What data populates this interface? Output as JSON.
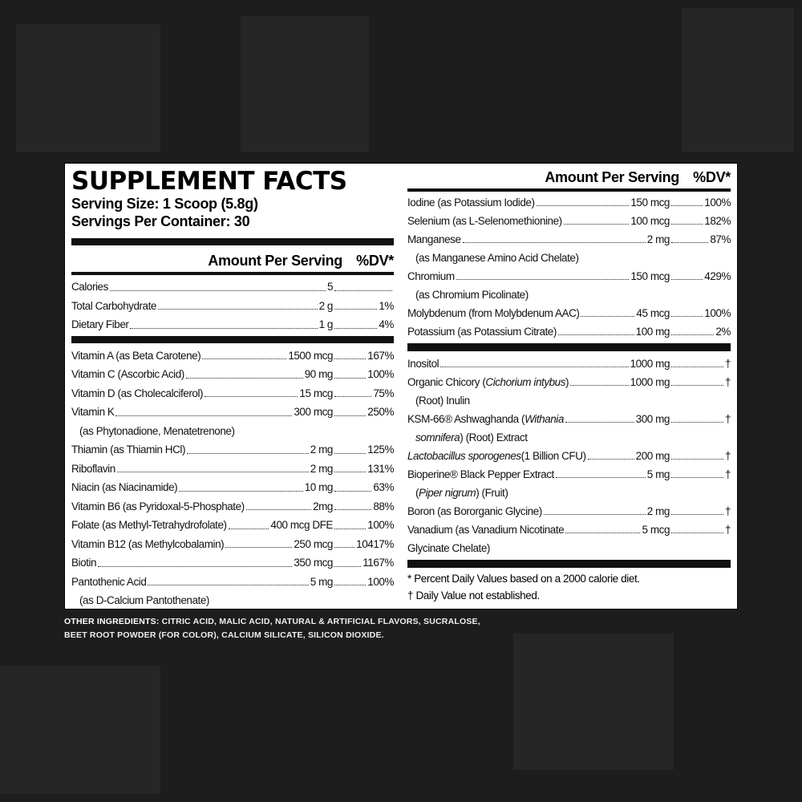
{
  "background": {
    "color": "#1d1d1d"
  },
  "label": {
    "title": "SUPPLEMENT FACTS",
    "serving_size": "Serving Size: 1 Scoop (5.8g)",
    "servings_per_container": "Servings Per Container: 30",
    "header_amount": "Amount Per Serving",
    "header_dv": "%DV*",
    "left_group1": [
      {
        "name": [
          {
            "t": "Calories"
          }
        ],
        "amount": "5",
        "dv": ""
      },
      {
        "name": [
          {
            "t": "Total Carbohydrate"
          }
        ],
        "amount": "2 g",
        "dv": "1%"
      },
      {
        "name": [
          {
            "t": "Dietary Fiber"
          }
        ],
        "amount": "1 g",
        "dv": "4%"
      }
    ],
    "left_group2": [
      {
        "name": [
          {
            "t": "Vitamin A (as Beta Carotene)"
          }
        ],
        "amount": "1500 mcg",
        "dv": "167%"
      },
      {
        "name": [
          {
            "t": "Vitamin C (Ascorbic Acid)"
          }
        ],
        "amount": "90 mg",
        "dv": "100%"
      },
      {
        "name": [
          {
            "t": "Vitamin D (as Cholecalciferol)"
          }
        ],
        "amount": "15 mcg",
        "dv": "75%"
      },
      {
        "name": [
          {
            "t": "Vitamin K"
          }
        ],
        "amount": "300 mcg",
        "dv": "250%"
      },
      {
        "cont": [
          {
            "t": "(as Phytonadione, Menatetrenone)"
          }
        ]
      },
      {
        "name": [
          {
            "t": "Thiamin (as Thiamin HCl)"
          }
        ],
        "amount": "2 mg",
        "dv": "125%"
      },
      {
        "name": [
          {
            "t": "Riboflavin"
          }
        ],
        "amount": "2 mg",
        "dv": "131%"
      },
      {
        "name": [
          {
            "t": "Niacin (as Niacinamide)"
          }
        ],
        "amount": "10 mg",
        "dv": "63%"
      },
      {
        "name": [
          {
            "t": "Vitamin B6 (as Pyridoxal-5-Phosphate)"
          }
        ],
        "amount": "2mg",
        "dv": "88%"
      },
      {
        "name": [
          {
            "t": "Folate (as Methyl-Tetrahydrofolate)"
          }
        ],
        "amount": "400 mcg DFE",
        "dv": "100%"
      },
      {
        "name": [
          {
            "t": "Vitamin B12 (as Methylcobalamin)"
          }
        ],
        "amount": "250 mcg",
        "dv": "10417%"
      },
      {
        "name": [
          {
            "t": "Biotin"
          }
        ],
        "amount": "350 mcg",
        "dv": "1167%"
      },
      {
        "name": [
          {
            "t": "Pantothenic Acid"
          }
        ],
        "amount": "5 mg",
        "dv": "100%"
      },
      {
        "cont": [
          {
            "t": "(as D-Calcium Pantothenate)"
          }
        ]
      }
    ],
    "right_group1": [
      {
        "name": [
          {
            "t": "Iodine (as Potassium Iodide)"
          }
        ],
        "amount": "150 mcg",
        "dv": "100%"
      },
      {
        "name": [
          {
            "t": "Selenium (as L-Selenomethionine)"
          }
        ],
        "amount": "100 mcg",
        "dv": "182%"
      },
      {
        "name": [
          {
            "t": "Manganese"
          }
        ],
        "amount": "2 mg",
        "dv": "87%"
      },
      {
        "cont": [
          {
            "t": "(as Manganese Amino Acid Chelate)"
          }
        ]
      },
      {
        "name": [
          {
            "t": "Chromium"
          }
        ],
        "amount": "150 mcg",
        "dv": "429%"
      },
      {
        "cont": [
          {
            "t": "(as Chromium Picolinate)"
          }
        ]
      },
      {
        "name": [
          {
            "t": "Molybdenum (from Molybdenum AAC)"
          }
        ],
        "amount": "45 mcg",
        "dv": "100%"
      },
      {
        "name": [
          {
            "t": "Potassium (as Potassium Citrate)"
          }
        ],
        "amount": "100 mg",
        "dv": "2%"
      }
    ],
    "right_group2": [
      {
        "name": [
          {
            "t": "Inositol"
          }
        ],
        "amount": "1000 mg",
        "dv": "†"
      },
      {
        "name": [
          {
            "t": "Organic Chicory ("
          },
          {
            "t": "Cichorium intybus",
            "i": true
          },
          {
            "t": ")"
          }
        ],
        "amount": "1000 mg",
        "dv": "†"
      },
      {
        "cont": [
          {
            "t": "(Root) Inulin"
          }
        ]
      },
      {
        "name": [
          {
            "t": "KSM-66® Ashwaghanda ("
          },
          {
            "t": "Withania",
            "i": true
          }
        ],
        "amount": "300 mg",
        "dv": "†"
      },
      {
        "cont": [
          {
            "t": "somnifera",
            "i": true
          },
          {
            "t": ") (Root) Extract"
          }
        ]
      },
      {
        "name": [
          {
            "t": "Lactobacillus sporogenes",
            "i": true
          },
          {
            "t": " (1 Billion CFU)"
          }
        ],
        "amount": "200 mg",
        "dv": "†"
      },
      {
        "name": [
          {
            "t": "Bioperine® Black Pepper Extract"
          }
        ],
        "amount": "5 mg",
        "dv": "†"
      },
      {
        "cont": [
          {
            "t": "("
          },
          {
            "t": "Piper nigrum",
            "i": true
          },
          {
            "t": ") (Fruit)"
          }
        ]
      },
      {
        "name": [
          {
            "t": "Boron (as Bororganic Glycine)"
          }
        ],
        "amount": "2 mg",
        "dv": "†"
      },
      {
        "name": [
          {
            "t": "Vanadium (as Vanadium Nicotinate"
          }
        ],
        "amount": "5 mcg",
        "dv": "†"
      },
      {
        "cont0": [
          {
            "t": "Glycinate Chelate)"
          }
        ]
      }
    ],
    "footnote_dv": "* Percent Daily Values based on a 2000 calorie diet.",
    "footnote_dagger": "† Daily Value not established."
  },
  "other_ingredients": {
    "label": "OTHER INGREDIENTS:",
    "text": " CITRIC ACID, MALIC ACID, NATURAL & ARTIFICIAL FLAVORS, SUCRALOSE, BEET ROOT POWDER (FOR COLOR), CALCIUM SILICATE, SILICON DIOXIDE."
  }
}
